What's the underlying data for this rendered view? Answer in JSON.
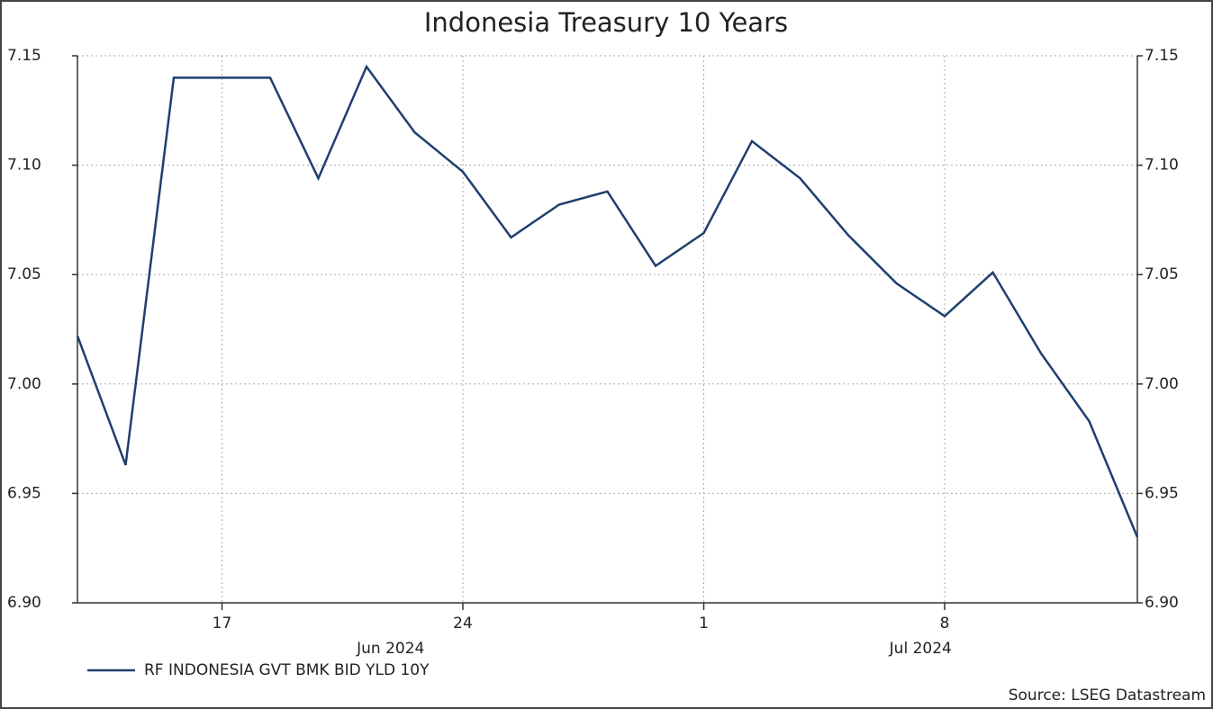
{
  "chart_data": {
    "type": "line",
    "title": "Indonesia Treasury 10 Years",
    "x": [
      "2024-06-12",
      "2024-06-13",
      "2024-06-14",
      "2024-06-17",
      "2024-06-18",
      "2024-06-19",
      "2024-06-20",
      "2024-06-21",
      "2024-06-24",
      "2024-06-25",
      "2024-06-26",
      "2024-06-27",
      "2024-06-28",
      "2024-07-01",
      "2024-07-02",
      "2024-07-03",
      "2024-07-04",
      "2024-07-05",
      "2024-07-08",
      "2024-07-09",
      "2024-07-10",
      "2024-07-11",
      "2024-07-12"
    ],
    "series": [
      {
        "name": "RF INDONESIA GVT BMK BID YLD 10Y",
        "color": "#1f3f6e",
        "values": [
          7.022,
          6.963,
          7.14,
          7.14,
          7.14,
          7.094,
          7.145,
          7.115,
          7.097,
          7.067,
          7.082,
          7.088,
          7.054,
          7.069,
          7.111,
          7.094,
          7.068,
          7.046,
          7.031,
          7.051,
          7.014,
          6.983,
          6.93
        ]
      }
    ],
    "xticks": [
      {
        "value": "2024-06-17",
        "label": "17"
      },
      {
        "value": "2024-06-24",
        "label": "24"
      },
      {
        "value": "2024-07-01",
        "label": "1"
      },
      {
        "value": "2024-07-08",
        "label": "8"
      }
    ],
    "month_labels": [
      {
        "value": "2024-06",
        "label": "Jun 2024"
      },
      {
        "value": "2024-07",
        "label": "Jul 2024"
      }
    ],
    "ylim": [
      6.9,
      7.15
    ],
    "yticks": [
      {
        "value": 6.9,
        "label": "6.90"
      },
      {
        "value": 6.95,
        "label": "6.95"
      },
      {
        "value": 7.0,
        "label": "7.00"
      },
      {
        "value": 7.05,
        "label": "7.05"
      },
      {
        "value": 7.1,
        "label": "7.10"
      },
      {
        "value": 7.15,
        "label": "7.15"
      }
    ],
    "grid": true,
    "legend": "bottom-left",
    "source": "Source: LSEG Datastream"
  }
}
